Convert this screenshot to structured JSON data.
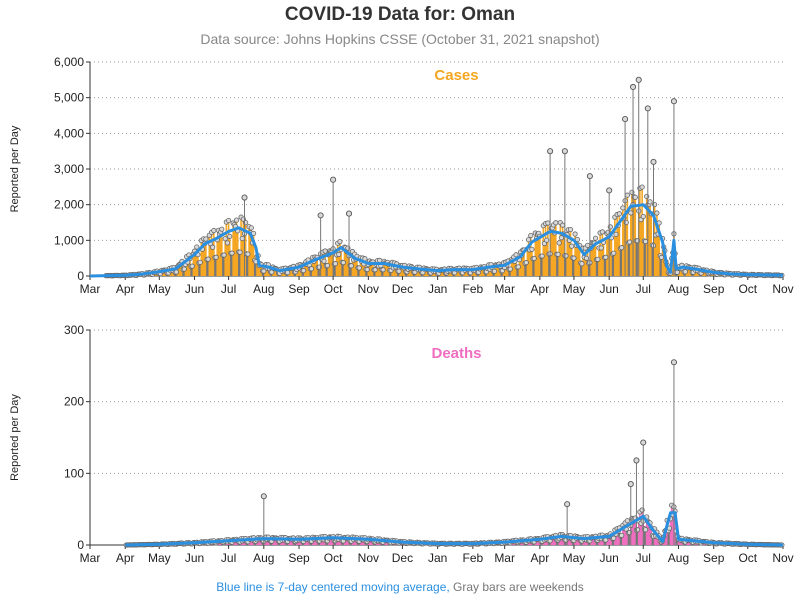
{
  "title": "COVID-19 Data for: Oman",
  "subtitle": "Data source: Johns Hopkins CSSE (October 31, 2021 snapshot)",
  "footnote": {
    "part1": "Blue line is 7-day centered moving average,",
    "part2": " Gray bars are weekends"
  },
  "colors": {
    "cases": "#f5a623",
    "deaths": "#f06ec0",
    "average": "#2b8fe0",
    "weekend": "#777777",
    "title_cases": "#f5a623",
    "title_deaths": "#f06ec0"
  },
  "chart_data": [
    {
      "type": "bar",
      "title": "Cases",
      "ylabel": "Reported per Day",
      "ylim": [
        0,
        6000
      ],
      "yticks": [
        0,
        1000,
        2000,
        3000,
        4000,
        5000,
        6000
      ],
      "ytick_labels": [
        "0",
        "1,000",
        "2,000",
        "3,000",
        "4,000",
        "5,000",
        "6,000"
      ],
      "x_tick_labels": [
        "Mar",
        "Apr",
        "May",
        "Jun",
        "Jul",
        "Aug",
        "Sep",
        "Oct",
        "Nov",
        "Dec",
        "Jan",
        "Feb",
        "Mar",
        "Apr",
        "May",
        "Jun",
        "Jul",
        "Aug",
        "Sep",
        "Oct",
        "Nov"
      ],
      "x_start": "2020-03-01",
      "x_end": "2021-11-01",
      "grid": "horizontal dotted",
      "series": [
        {
          "name": "7-day centered moving average",
          "points": [
            [
              "2020-03-01",
              0
            ],
            [
              "2020-04-01",
              20
            ],
            [
              "2020-04-15",
              50
            ],
            [
              "2020-05-01",
              120
            ],
            [
              "2020-05-15",
              200
            ],
            [
              "2020-06-01",
              600
            ],
            [
              "2020-06-10",
              900
            ],
            [
              "2020-06-20",
              1050
            ],
            [
              "2020-07-01",
              1250
            ],
            [
              "2020-07-10",
              1350
            ],
            [
              "2020-07-20",
              1200
            ],
            [
              "2020-07-25",
              800
            ],
            [
              "2020-07-28",
              300
            ],
            [
              "2020-08-05",
              250
            ],
            [
              "2020-08-15",
              150
            ],
            [
              "2020-09-01",
              250
            ],
            [
              "2020-09-15",
              450
            ],
            [
              "2020-10-01",
              650
            ],
            [
              "2020-10-08",
              800
            ],
            [
              "2020-10-20",
              500
            ],
            [
              "2020-11-01",
              350
            ],
            [
              "2020-11-15",
              350
            ],
            [
              "2020-12-01",
              250
            ],
            [
              "2020-12-15",
              200
            ],
            [
              "2021-01-01",
              150
            ],
            [
              "2021-01-15",
              180
            ],
            [
              "2021-02-01",
              180
            ],
            [
              "2021-02-15",
              250
            ],
            [
              "2021-03-01",
              300
            ],
            [
              "2021-03-15",
              550
            ],
            [
              "2021-03-25",
              950
            ],
            [
              "2021-04-10",
              1250
            ],
            [
              "2021-04-20",
              1200
            ],
            [
              "2021-05-01",
              1000
            ],
            [
              "2021-05-10",
              600
            ],
            [
              "2021-05-20",
              900
            ],
            [
              "2021-06-01",
              1100
            ],
            [
              "2021-06-10",
              1500
            ],
            [
              "2021-06-20",
              1950
            ],
            [
              "2021-07-01",
              2000
            ],
            [
              "2021-07-10",
              1700
            ],
            [
              "2021-07-18",
              950
            ],
            [
              "2021-07-22",
              250
            ],
            [
              "2021-07-25",
              100
            ],
            [
              "2021-07-28",
              1000
            ],
            [
              "2021-07-30",
              200
            ],
            [
              "2021-08-05",
              250
            ],
            [
              "2021-08-15",
              200
            ],
            [
              "2021-09-01",
              100
            ],
            [
              "2021-09-15",
              60
            ],
            [
              "2021-10-01",
              40
            ],
            [
              "2021-10-15",
              30
            ],
            [
              "2021-11-01",
              20
            ]
          ]
        }
      ],
      "spikes": [
        [
          "2020-07-15",
          2200
        ],
        [
          "2020-10-01",
          2700
        ],
        [
          "2020-09-20",
          1700
        ],
        [
          "2020-10-15",
          1750
        ],
        [
          "2021-04-10",
          3500
        ],
        [
          "2021-04-23",
          3500
        ],
        [
          "2021-05-15",
          2800
        ],
        [
          "2021-06-01",
          2400
        ],
        [
          "2021-06-15",
          4400
        ],
        [
          "2021-06-22",
          5300
        ],
        [
          "2021-06-27",
          5500
        ],
        [
          "2021-07-05",
          4700
        ],
        [
          "2021-07-10",
          3200
        ],
        [
          "2021-07-28",
          4900
        ]
      ]
    },
    {
      "type": "bar",
      "title": "Deaths",
      "ylabel": "Reported per Day",
      "ylim": [
        0,
        300
      ],
      "yticks": [
        0,
        100,
        200,
        300
      ],
      "ytick_labels": [
        "0",
        "100",
        "200",
        "300"
      ],
      "x_tick_labels": [
        "Mar",
        "Apr",
        "May",
        "Jun",
        "Jul",
        "Aug",
        "Sep",
        "Oct",
        "Nov",
        "Dec",
        "Jan",
        "Feb",
        "Mar",
        "Apr",
        "May",
        "Jun",
        "Jul",
        "Aug",
        "Sep",
        "Oct",
        "Nov"
      ],
      "x_start": "2020-03-01",
      "x_end": "2021-11-01",
      "grid": "horizontal dotted",
      "series": [
        {
          "name": "7-day centered moving average",
          "points": [
            [
              "2020-04-01",
              0
            ],
            [
              "2020-05-01",
              1
            ],
            [
              "2020-06-01",
              3
            ],
            [
              "2020-07-01",
              6
            ],
            [
              "2020-08-01",
              9
            ],
            [
              "2020-09-01",
              8
            ],
            [
              "2020-10-01",
              10
            ],
            [
              "2020-11-01",
              8
            ],
            [
              "2020-12-01",
              4
            ],
            [
              "2021-01-01",
              2
            ],
            [
              "2021-02-01",
              2
            ],
            [
              "2021-03-01",
              4
            ],
            [
              "2021-04-01",
              8
            ],
            [
              "2021-04-20",
              12
            ],
            [
              "2021-05-10",
              9
            ],
            [
              "2021-06-01",
              12
            ],
            [
              "2021-06-20",
              30
            ],
            [
              "2021-07-01",
              40
            ],
            [
              "2021-07-10",
              20
            ],
            [
              "2021-07-18",
              5
            ],
            [
              "2021-07-25",
              45
            ],
            [
              "2021-07-29",
              45
            ],
            [
              "2021-08-01",
              8
            ],
            [
              "2021-09-01",
              3
            ],
            [
              "2021-10-01",
              1
            ],
            [
              "2021-11-01",
              0
            ]
          ]
        }
      ],
      "spikes": [
        [
          "2020-08-01",
          68
        ],
        [
          "2021-04-25",
          57
        ],
        [
          "2021-06-20",
          85
        ],
        [
          "2021-06-25",
          118
        ],
        [
          "2021-07-01",
          143
        ],
        [
          "2021-07-28",
          255
        ]
      ]
    }
  ]
}
